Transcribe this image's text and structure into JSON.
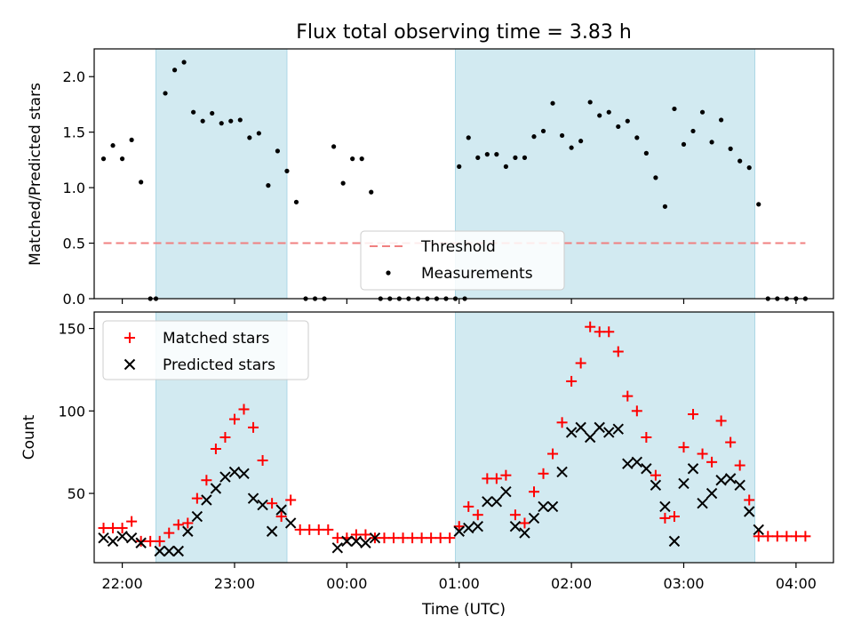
{
  "chart_data": {
    "title": "Flux total observing time = 3.83 h",
    "xlabel": "Time (UTC)",
    "xlim": [
      "21:45",
      "04:20"
    ],
    "x_ticks": [
      "22:00",
      "23:00",
      "00:00",
      "01:00",
      "02:00",
      "03:00",
      "04:00"
    ],
    "shaded_intervals": [
      [
        "22:18",
        "23:28"
      ],
      [
        "00:58",
        "03:38"
      ]
    ],
    "colors": {
      "shade": "#add8e6",
      "threshold": "#f08080",
      "matched": "#ff0000",
      "predicted": "#000000",
      "measurements": "#000000"
    },
    "panels": [
      {
        "type": "scatter",
        "ylabel": "Matched/Predicted stars",
        "ylim": [
          0,
          2.25
        ],
        "y_ticks": [
          "0.0",
          "0.5",
          "1.0",
          "1.5",
          "2.0"
        ],
        "legend": {
          "placement": "bottom-center"
        },
        "threshold": {
          "name": "Threshold",
          "value": 0.5,
          "x_range": [
            "21:50",
            "04:05"
          ]
        },
        "series": [
          {
            "name": "Measurements",
            "points": [
              [
                "21:50",
                1.26
              ],
              [
                "21:55",
                1.38
              ],
              [
                "22:00",
                1.26
              ],
              [
                "22:05",
                1.43
              ],
              [
                "22:10",
                1.05
              ],
              [
                "22:15",
                0
              ],
              [
                "22:18",
                0
              ],
              [
                "22:23",
                1.85
              ],
              [
                "22:28",
                2.06
              ],
              [
                "22:33",
                2.13
              ],
              [
                "22:38",
                1.68
              ],
              [
                "22:43",
                1.6
              ],
              [
                "22:48",
                1.67
              ],
              [
                "22:53",
                1.58
              ],
              [
                "22:58",
                1.6
              ],
              [
                "23:03",
                1.61
              ],
              [
                "23:08",
                1.45
              ],
              [
                "23:13",
                1.49
              ],
              [
                "23:18",
                1.02
              ],
              [
                "23:23",
                1.33
              ],
              [
                "23:28",
                1.15
              ],
              [
                "23:33",
                0.87
              ],
              [
                "23:38",
                0
              ],
              [
                "23:43",
                0
              ],
              [
                "23:48",
                0
              ],
              [
                "23:53",
                1.37
              ],
              [
                "23:58",
                1.04
              ],
              [
                "00:03",
                1.26
              ],
              [
                "00:08",
                1.26
              ],
              [
                "00:13",
                0.96
              ],
              [
                "00:18",
                0
              ],
              [
                "00:23",
                0
              ],
              [
                "00:28",
                0
              ],
              [
                "00:33",
                0
              ],
              [
                "00:38",
                0
              ],
              [
                "00:43",
                0
              ],
              [
                "00:48",
                0
              ],
              [
                "00:53",
                0
              ],
              [
                "00:58",
                0
              ],
              [
                "01:03",
                0
              ],
              [
                "01:00",
                1.19
              ],
              [
                "01:05",
                1.45
              ],
              [
                "01:10",
                1.27
              ],
              [
                "01:15",
                1.3
              ],
              [
                "01:20",
                1.3
              ],
              [
                "01:25",
                1.19
              ],
              [
                "01:30",
                1.27
              ],
              [
                "01:35",
                1.27
              ],
              [
                "01:40",
                1.46
              ],
              [
                "01:45",
                1.51
              ],
              [
                "01:50",
                1.76
              ],
              [
                "01:55",
                1.47
              ],
              [
                "02:00",
                1.36
              ],
              [
                "02:05",
                1.42
              ],
              [
                "02:10",
                1.77
              ],
              [
                "02:15",
                1.65
              ],
              [
                "02:20",
                1.68
              ],
              [
                "02:25",
                1.55
              ],
              [
                "02:30",
                1.6
              ],
              [
                "02:35",
                1.45
              ],
              [
                "02:40",
                1.31
              ],
              [
                "02:45",
                1.09
              ],
              [
                "02:50",
                0.83
              ],
              [
                "02:55",
                1.71
              ],
              [
                "03:00",
                1.39
              ],
              [
                "03:05",
                1.51
              ],
              [
                "03:10",
                1.68
              ],
              [
                "03:15",
                1.41
              ],
              [
                "03:20",
                1.61
              ],
              [
                "03:25",
                1.35
              ],
              [
                "03:30",
                1.24
              ],
              [
                "03:35",
                1.18
              ],
              [
                "03:40",
                0.85
              ],
              [
                "03:45",
                0
              ],
              [
                "03:50",
                0
              ],
              [
                "03:55",
                0
              ],
              [
                "04:00",
                0
              ],
              [
                "04:05",
                0
              ]
            ]
          }
        ]
      },
      {
        "type": "scatter",
        "ylabel": "Count",
        "ylim": [
          8,
          160
        ],
        "y_ticks": [
          "50",
          "100",
          "150"
        ],
        "legend": {
          "placement": "top-left"
        },
        "series": [
          {
            "name": "Matched stars",
            "marker": "+",
            "points": [
              [
                "21:50",
                29
              ],
              [
                "21:55",
                29
              ],
              [
                "22:00",
                29
              ],
              [
                "22:05",
                33
              ],
              [
                "22:10",
                21
              ],
              [
                "22:15",
                21
              ],
              [
                "22:20",
                21
              ],
              [
                "22:25",
                26
              ],
              [
                "22:30",
                31
              ],
              [
                "22:35",
                32
              ],
              [
                "22:40",
                47
              ],
              [
                "22:45",
                58
              ],
              [
                "22:50",
                77
              ],
              [
                "22:55",
                84
              ],
              [
                "23:00",
                95
              ],
              [
                "23:05",
                101
              ],
              [
                "23:10",
                90
              ],
              [
                "23:15",
                70
              ],
              [
                "23:20",
                44
              ],
              [
                "23:25",
                36
              ],
              [
                "23:30",
                46
              ],
              [
                "23:35",
                28
              ],
              [
                "23:40",
                28
              ],
              [
                "23:45",
                28
              ],
              [
                "23:50",
                28
              ],
              [
                "23:55",
                23
              ],
              [
                "00:00",
                23
              ],
              [
                "00:05",
                25
              ],
              [
                "00:10",
                25
              ],
              [
                "00:15",
                23
              ],
              [
                "00:20",
                23
              ],
              [
                "00:25",
                23
              ],
              [
                "00:30",
                23
              ],
              [
                "00:35",
                23
              ],
              [
                "00:40",
                23
              ],
              [
                "00:45",
                23
              ],
              [
                "00:50",
                23
              ],
              [
                "00:55",
                23
              ],
              [
                "01:00",
                30
              ],
              [
                "01:05",
                42
              ],
              [
                "01:10",
                37
              ],
              [
                "01:15",
                59
              ],
              [
                "01:20",
                59
              ],
              [
                "01:25",
                61
              ],
              [
                "01:30",
                37
              ],
              [
                "01:35",
                32
              ],
              [
                "01:40",
                51
              ],
              [
                "01:45",
                62
              ],
              [
                "01:50",
                74
              ],
              [
                "01:55",
                93
              ],
              [
                "02:00",
                118
              ],
              [
                "02:05",
                129
              ],
              [
                "02:10",
                151
              ],
              [
                "02:15",
                148
              ],
              [
                "02:20",
                148
              ],
              [
                "02:25",
                136
              ],
              [
                "02:30",
                109
              ],
              [
                "02:35",
                100
              ],
              [
                "02:40",
                84
              ],
              [
                "02:45",
                61
              ],
              [
                "02:50",
                35
              ],
              [
                "02:55",
                36
              ],
              [
                "03:00",
                78
              ],
              [
                "03:05",
                98
              ],
              [
                "03:10",
                74
              ],
              [
                "03:15",
                69
              ],
              [
                "03:20",
                94
              ],
              [
                "03:25",
                81
              ],
              [
                "03:30",
                67
              ],
              [
                "03:35",
                46
              ],
              [
                "03:40",
                24
              ],
              [
                "03:45",
                24
              ],
              [
                "03:50",
                24
              ],
              [
                "03:55",
                24
              ],
              [
                "04:00",
                24
              ],
              [
                "04:05",
                24
              ]
            ]
          },
          {
            "name": "Predicted stars",
            "marker": "x",
            "points": [
              [
                "21:50",
                23
              ],
              [
                "21:55",
                21
              ],
              [
                "22:00",
                24
              ],
              [
                "22:05",
                23
              ],
              [
                "22:10",
                20
              ],
              [
                "22:20",
                15
              ],
              [
                "22:25",
                15
              ],
              [
                "22:30",
                15
              ],
              [
                "22:35",
                27
              ],
              [
                "22:40",
                36
              ],
              [
                "22:45",
                46
              ],
              [
                "22:50",
                53
              ],
              [
                "22:55",
                60
              ],
              [
                "23:00",
                63
              ],
              [
                "23:05",
                62
              ],
              [
                "23:10",
                47
              ],
              [
                "23:15",
                43
              ],
              [
                "23:20",
                27
              ],
              [
                "23:25",
                40
              ],
              [
                "23:30",
                32
              ],
              [
                "23:55",
                17
              ],
              [
                "00:00",
                21
              ],
              [
                "00:05",
                21
              ],
              [
                "00:10",
                20
              ],
              [
                "00:15",
                23
              ],
              [
                "01:00",
                27
              ],
              [
                "01:05",
                29
              ],
              [
                "01:10",
                30
              ],
              [
                "01:15",
                45
              ],
              [
                "01:20",
                45
              ],
              [
                "01:25",
                51
              ],
              [
                "01:30",
                30
              ],
              [
                "01:35",
                26
              ],
              [
                "01:40",
                35
              ],
              [
                "01:45",
                42
              ],
              [
                "01:50",
                42
              ],
              [
                "01:55",
                63
              ],
              [
                "02:00",
                87
              ],
              [
                "02:05",
                90
              ],
              [
                "02:10",
                84
              ],
              [
                "02:15",
                90
              ],
              [
                "02:20",
                87
              ],
              [
                "02:25",
                89
              ],
              [
                "02:30",
                68
              ],
              [
                "02:35",
                69
              ],
              [
                "02:40",
                65
              ],
              [
                "02:45",
                55
              ],
              [
                "02:50",
                42
              ],
              [
                "02:55",
                21
              ],
              [
                "03:00",
                56
              ],
              [
                "03:05",
                65
              ],
              [
                "03:10",
                44
              ],
              [
                "03:15",
                50
              ],
              [
                "03:20",
                58
              ],
              [
                "03:25",
                59
              ],
              [
                "03:30",
                55
              ],
              [
                "03:35",
                39
              ],
              [
                "03:40",
                28
              ]
            ]
          }
        ]
      }
    ]
  }
}
